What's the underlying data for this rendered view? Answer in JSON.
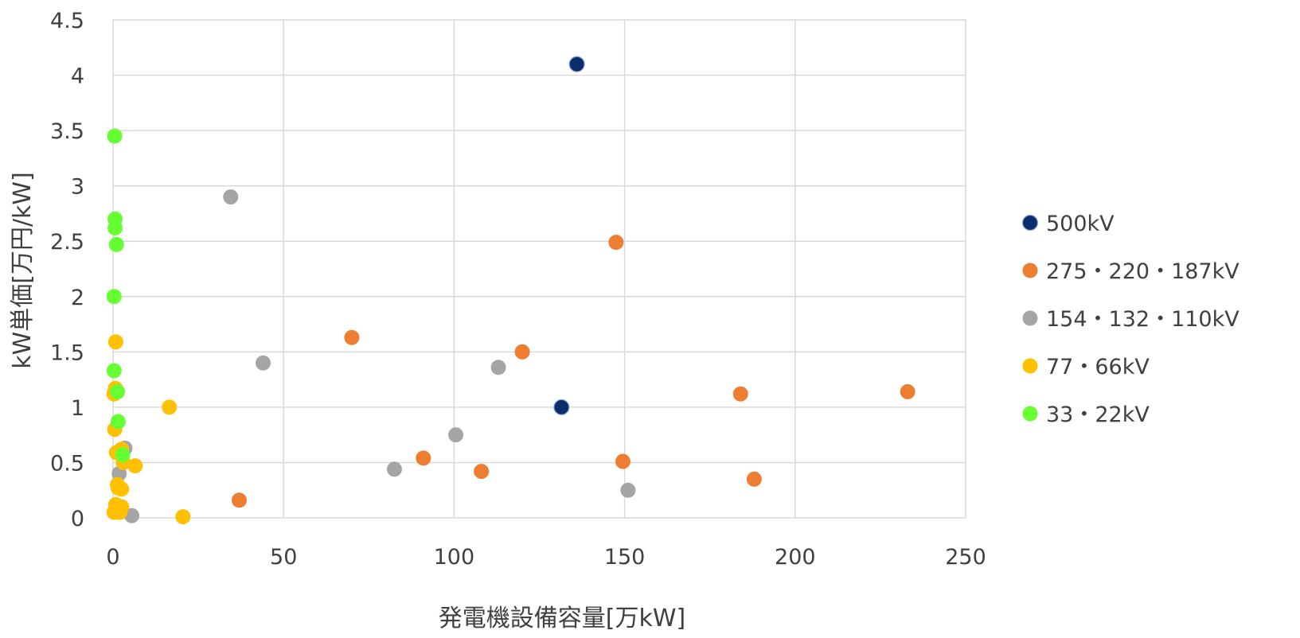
{
  "chart_data": {
    "type": "scatter",
    "title": "",
    "xlabel": "発電機設備容量[万kW]",
    "ylabel": "kW単価[万円/kW]",
    "xlim": [
      0,
      250
    ],
    "ylim": [
      0,
      4.5
    ],
    "x_ticks": [
      0,
      50,
      100,
      150,
      200,
      250
    ],
    "y_ticks": [
      0,
      0.5,
      1,
      1.5,
      2,
      2.5,
      3,
      3.5,
      4,
      4.5
    ],
    "x_tick_labels": [
      "0",
      "50",
      "100",
      "150",
      "200",
      "250"
    ],
    "y_tick_labels": [
      "0",
      "0.5",
      "1",
      "1.5",
      "2",
      "2.5",
      "3",
      "3.5",
      "4",
      "4.5"
    ],
    "grid": "major",
    "legend_position": "right",
    "series": [
      {
        "name": "500kV",
        "color": "#0B2E6B",
        "points": [
          [
            136,
            4.1
          ],
          [
            131.5,
            1.0
          ]
        ]
      },
      {
        "name": "275・220・187kV",
        "color": "#ED7D31",
        "points": [
          [
            70,
            1.63
          ],
          [
            120,
            1.5
          ],
          [
            147.5,
            2.49
          ],
          [
            184,
            1.12
          ],
          [
            233,
            1.14
          ],
          [
            91,
            0.54
          ],
          [
            108,
            0.42
          ],
          [
            149.5,
            0.51
          ],
          [
            188,
            0.35
          ],
          [
            37,
            0.16
          ]
        ]
      },
      {
        "name": "154・132・110kV",
        "color": "#A5A5A5",
        "points": [
          [
            34.5,
            2.9
          ],
          [
            44,
            1.4
          ],
          [
            113,
            1.36
          ],
          [
            100.5,
            0.75
          ],
          [
            82.5,
            0.44
          ],
          [
            151,
            0.25
          ],
          [
            3.5,
            0.63
          ],
          [
            1.8,
            0.4
          ],
          [
            5.5,
            0.02
          ]
        ]
      },
      {
        "name": "77・66kV",
        "color": "#FFC000",
        "points": [
          [
            0.8,
            1.59
          ],
          [
            0.7,
            1.17
          ],
          [
            0.3,
            1.12
          ],
          [
            16.5,
            1.0
          ],
          [
            0.5,
            0.8
          ],
          [
            1.0,
            0.59
          ],
          [
            2.5,
            0.62
          ],
          [
            3.0,
            0.5
          ],
          [
            6.5,
            0.47
          ],
          [
            1.3,
            0.3
          ],
          [
            1.5,
            0.27
          ],
          [
            2.5,
            0.26
          ],
          [
            0.8,
            0.12
          ],
          [
            2.5,
            0.1
          ],
          [
            0.3,
            0.05
          ],
          [
            2.0,
            0.05
          ],
          [
            20.5,
            0.01
          ]
        ]
      },
      {
        "name": "33・22kV",
        "color": "#66FF33",
        "points": [
          [
            0.5,
            3.45
          ],
          [
            0.6,
            2.7
          ],
          [
            0.6,
            2.62
          ],
          [
            1.0,
            2.47
          ],
          [
            0.3,
            2.0
          ],
          [
            0.3,
            1.33
          ],
          [
            1.3,
            1.14
          ],
          [
            1.5,
            0.87
          ],
          [
            2.8,
            0.57
          ]
        ]
      }
    ]
  }
}
